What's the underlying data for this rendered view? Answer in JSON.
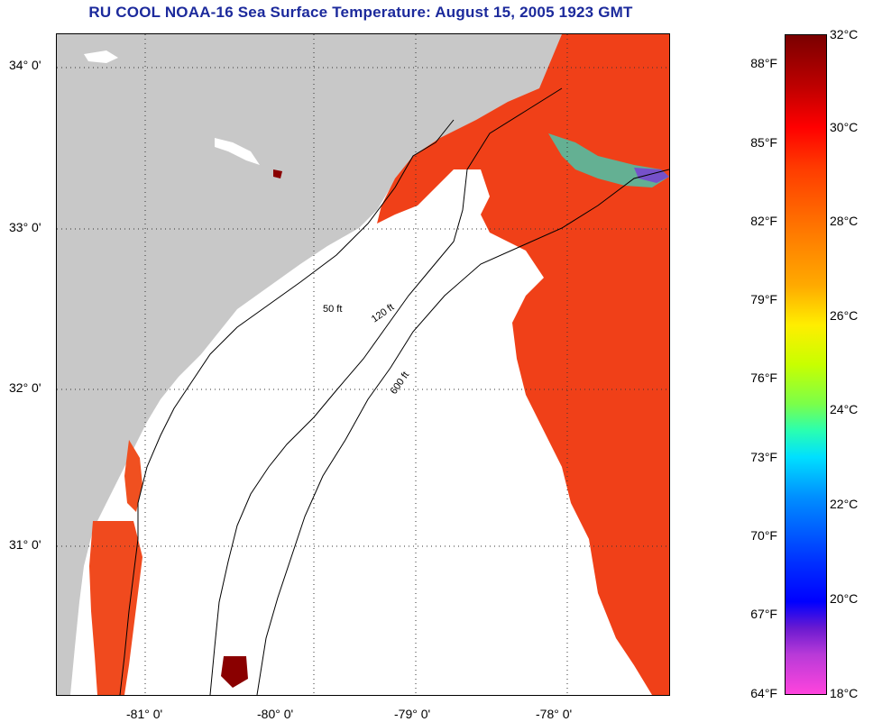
{
  "title": "RU COOL  NOAA-16  Sea Surface Temperature:  August 15, 2005 1923 GMT",
  "latitude_labels": [
    "34° 0'",
    "33° 0'",
    "32° 0'",
    "31° 0'"
  ],
  "longitude_labels": [
    "-81° 0'",
    "-80° 0'",
    "-79° 0'",
    "-78° 0'"
  ],
  "contour_labels": [
    "50 ft",
    "120 ft",
    "600 ft"
  ],
  "colorbar": {
    "fahrenheit_labels": [
      "88°F",
      "85°F",
      "82°F",
      "79°F",
      "76°F",
      "73°F",
      "70°F",
      "67°F",
      "64°F"
    ],
    "celsius_labels": [
      "32°C",
      "30°C",
      "28°C",
      "26°C",
      "24°C",
      "22°C",
      "20°C",
      "18°C"
    ]
  },
  "colors": {
    "land": "#c8c8c8",
    "warm_sst": "#f23a14",
    "hot_sst": "#8a0000",
    "title": "#1c2a9c"
  }
}
